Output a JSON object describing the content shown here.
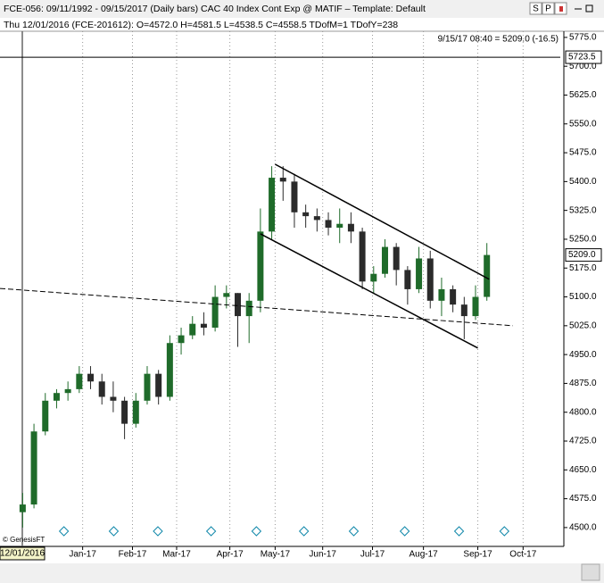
{
  "chart_data": {
    "type": "candlestick",
    "header": "FCE-056:  09/11/1992 - 09/15/2017  (Daily bars)   CAC 40 Index Cont Exp @ MATIF  –  Template: Default",
    "subheader": "Thu  12/01/2016 (FCE-201612):  O=4572.0  H=4581.5  L=4538.5  C=4558.5  TDofM=1  TDofY=238",
    "last_quote": "9/15/17 08:40 = 5209.0 (-16.5)",
    "cursor_label": "12/01/2016",
    "credit": "© GenesisFT",
    "buttons": [
      "S",
      "P"
    ],
    "up_color": "#1f6b2a",
    "down_color": "#2b2b2b",
    "categories": [
      null,
      null,
      null,
      null,
      null,
      null,
      null,
      null,
      null,
      null,
      null,
      null,
      null,
      null,
      null,
      null,
      null,
      null,
      null,
      null,
      null,
      null,
      null,
      null,
      null,
      null,
      null,
      null,
      null,
      null,
      null,
      null,
      null,
      null,
      null,
      null,
      null,
      null,
      null,
      null,
      null,
      null,
      null,
      null,
      null,
      null,
      null,
      null
    ],
    "open": [
      4540,
      4560,
      4750,
      4830,
      4850,
      4860,
      4900,
      4880,
      4840,
      4830,
      4770,
      4830,
      4900,
      4840,
      4980,
      5000,
      5030,
      5020,
      5100,
      5110,
      5050,
      5090,
      5270,
      5410,
      5400,
      5320,
      5310,
      5300,
      5280,
      5290,
      5270,
      5140,
      5160,
      5230,
      5170,
      5120,
      5200,
      5090,
      5120,
      5080,
      5050,
      5100,
      null,
      null,
      null,
      null,
      null,
      null
    ],
    "high": [
      4590,
      4770,
      4850,
      4860,
      4880,
      4920,
      4920,
      4900,
      4880,
      4840,
      4850,
      4920,
      4910,
      5000,
      5020,
      5050,
      5060,
      5130,
      5130,
      5110,
      5110,
      5330,
      5440,
      5440,
      5420,
      5340,
      5330,
      5320,
      5330,
      5320,
      5280,
      5180,
      5250,
      5240,
      5180,
      5230,
      5220,
      5150,
      5130,
      5100,
      5130,
      5240,
      null,
      null,
      null,
      null,
      null,
      null
    ],
    "low": [
      4500,
      4550,
      4740,
      4810,
      4830,
      4850,
      4860,
      4820,
      4800,
      4730,
      4760,
      4820,
      4820,
      4830,
      4950,
      4990,
      5000,
      5010,
      5070,
      4970,
      4980,
      5060,
      5250,
      5350,
      5280,
      5280,
      5270,
      5260,
      5240,
      5240,
      5120,
      5110,
      5150,
      5130,
      5080,
      5110,
      5070,
      5050,
      5060,
      4990,
      5040,
      5090,
      null,
      null,
      null,
      null,
      null,
      null
    ],
    "close": [
      4560,
      4750,
      4830,
      4850,
      4860,
      4900,
      4880,
      4840,
      4830,
      4770,
      4830,
      4900,
      4840,
      4980,
      5000,
      5030,
      5020,
      5100,
      5110,
      5050,
      5090,
      5270,
      5410,
      5400,
      5320,
      5310,
      5300,
      5280,
      5290,
      5270,
      5140,
      5160,
      5230,
      5170,
      5120,
      5200,
      5090,
      5120,
      5080,
      5050,
      5100,
      5209,
      null,
      null,
      null,
      null,
      null,
      null
    ],
    "xlim": [
      -2,
      47.8
    ],
    "xticks": [
      {
        "value": 5.3,
        "label": "Jan-17"
      },
      {
        "value": 9.7,
        "label": "Feb-17"
      },
      {
        "value": 13.6,
        "label": "Mar-17"
      },
      {
        "value": 18.3,
        "label": "Apr-17"
      },
      {
        "value": 22.3,
        "label": "May-17"
      },
      {
        "value": 26.5,
        "label": "Jun-17"
      },
      {
        "value": 30.9,
        "label": "Jul-17"
      },
      {
        "value": 35.4,
        "label": "Aug-17"
      },
      {
        "value": 40.2,
        "label": "Sep-17"
      },
      {
        "value": 44.2,
        "label": "Oct-17"
      }
    ],
    "ylim": [
      4451,
      5791
    ],
    "yticks": [
      {
        "value": 4500,
        "label": "4500.0"
      },
      {
        "value": 4575,
        "label": "4575.0"
      },
      {
        "value": 4650,
        "label": "4650.0"
      },
      {
        "value": 4725,
        "label": "4725.0"
      },
      {
        "value": 4800,
        "label": "4800.0"
      },
      {
        "value": 4875,
        "label": "4875.0"
      },
      {
        "value": 4950,
        "label": "4950.0"
      },
      {
        "value": 5025,
        "label": "5025.0"
      },
      {
        "value": 5100,
        "label": "5100.0"
      },
      {
        "value": 5175,
        "label": "5175.0"
      },
      {
        "value": 5250,
        "label": "5250.0"
      },
      {
        "value": 5325,
        "label": "5325.0"
      },
      {
        "value": 5400,
        "label": "5400.0"
      },
      {
        "value": 5475,
        "label": "5475.0"
      },
      {
        "value": 5550,
        "label": "5550.0"
      },
      {
        "value": 5625,
        "label": "5625.0"
      },
      {
        "value": 5700,
        "label": "5700.0"
      },
      {
        "value": 5775,
        "label": "5775.0"
      }
    ],
    "price_labels": [
      {
        "value": 5723.5,
        "label": "5723.5"
      },
      {
        "value": 5209,
        "label": "5209.0"
      }
    ],
    "trendlines": [
      {
        "style": "solid",
        "x": [
          22.3,
          41.2
        ],
        "y": [
          5445,
          5146
        ]
      },
      {
        "style": "solid",
        "x": [
          21,
          40.2
        ],
        "y": [
          5264,
          4967
        ]
      },
      {
        "style": "dashed",
        "x": [
          -2,
          43.3
        ],
        "y": [
          5122,
          5025
        ]
      }
    ]
  }
}
